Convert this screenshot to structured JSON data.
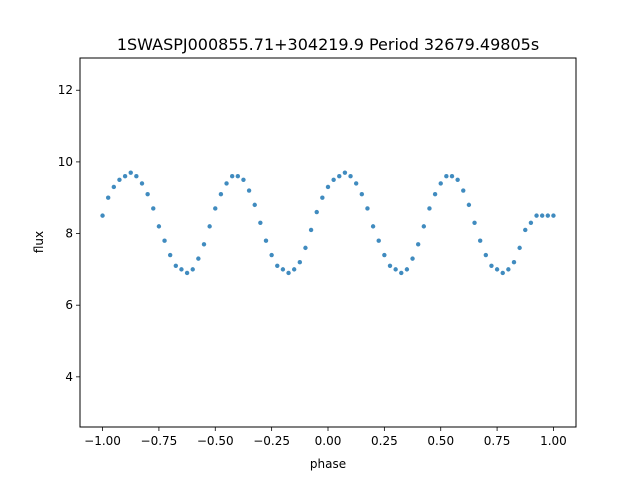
{
  "chart_data": {
    "type": "scatter",
    "title": "1SWASPJ000855.71+304219.9 Period 32679.49805s",
    "xlabel": "phase",
    "ylabel": "flux",
    "xlim": [
      -1.1,
      1.1
    ],
    "ylim": [
      2.6,
      12.9
    ],
    "x_ticks": [
      -1.0,
      -0.75,
      -0.5,
      -0.25,
      0.0,
      0.25,
      0.5,
      0.75,
      1.0
    ],
    "x_tick_labels": [
      "−1.00",
      "−0.75",
      "−0.50",
      "−0.25",
      "0.00",
      "0.25",
      "0.50",
      "0.75",
      "1.00"
    ],
    "y_ticks": [
      4,
      6,
      8,
      10,
      12
    ],
    "y_tick_labels": [
      "4",
      "6",
      "8",
      "10",
      "12"
    ],
    "grid": false,
    "series": [
      {
        "color": "#1f77b4",
        "x": [
          -1.0,
          -0.975,
          -0.95,
          -0.925,
          -0.9,
          -0.875,
          -0.85,
          -0.825,
          -0.8,
          -0.775,
          -0.75,
          -0.725,
          -0.7,
          -0.675,
          -0.65,
          -0.625,
          -0.6,
          -0.575,
          -0.55,
          -0.525,
          -0.5,
          -0.475,
          -0.45,
          -0.425,
          -0.4,
          -0.375,
          -0.35,
          -0.325,
          -0.3,
          -0.275,
          -0.25,
          -0.225,
          -0.2,
          -0.175,
          -0.15,
          -0.125,
          -0.1,
          -0.075,
          -0.05,
          -0.025,
          0.0,
          0.025,
          0.05,
          0.075,
          0.1,
          0.125,
          0.15,
          0.175,
          0.2,
          0.225,
          0.25,
          0.275,
          0.3,
          0.325,
          0.35,
          0.375,
          0.4,
          0.425,
          0.45,
          0.475,
          0.5,
          0.525,
          0.55,
          0.575,
          0.6,
          0.625,
          0.65,
          0.675,
          0.7,
          0.725,
          0.75,
          0.775,
          0.8,
          0.825,
          0.85,
          0.875,
          0.9,
          0.925,
          0.95,
          0.975,
          1.0
        ],
        "y": [
          8.5,
          9.0,
          9.3,
          9.5,
          9.6,
          9.7,
          9.6,
          9.4,
          9.1,
          8.7,
          8.2,
          7.8,
          7.4,
          7.1,
          7.0,
          6.9,
          7.0,
          7.3,
          7.7,
          8.2,
          8.7,
          9.1,
          9.4,
          9.6,
          9.6,
          9.5,
          9.2,
          8.8,
          8.3,
          7.8,
          7.4,
          7.1,
          7.0,
          6.9,
          7.0,
          7.2,
          7.6,
          8.1,
          8.6,
          9.0,
          9.3,
          9.5,
          9.6,
          9.7,
          9.6,
          9.4,
          9.1,
          8.7,
          8.2,
          7.8,
          7.4,
          7.1,
          7.0,
          6.9,
          7.0,
          7.3,
          7.7,
          8.2,
          8.7,
          9.1,
          9.4,
          9.6,
          9.6,
          9.5,
          9.2,
          8.8,
          8.3,
          7.8,
          7.4,
          7.1,
          7.0,
          6.9,
          7.0,
          7.2,
          7.6,
          8.1,
          8.3,
          8.5,
          8.5,
          8.5,
          8.5
        ]
      }
    ]
  }
}
